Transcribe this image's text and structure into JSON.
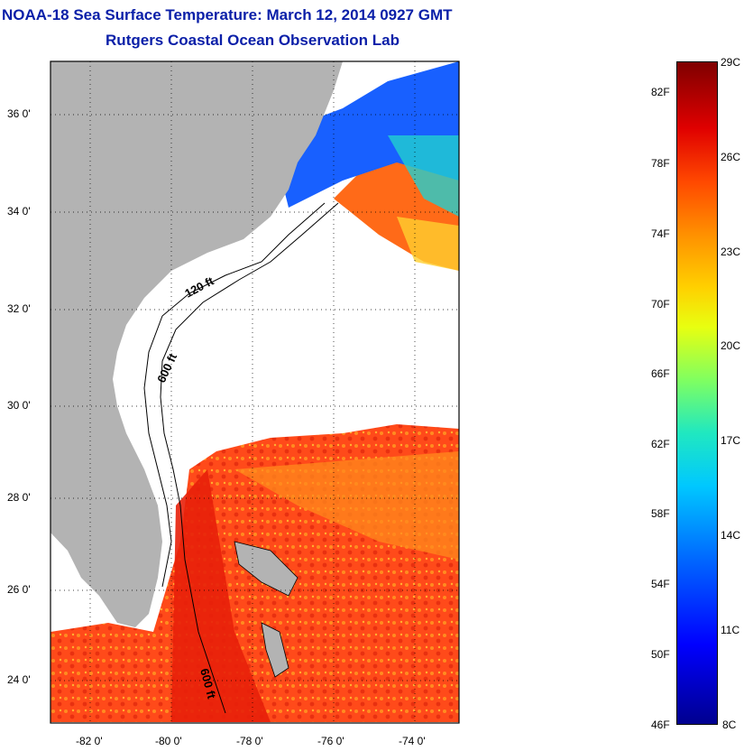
{
  "title": "NOAA-18 Sea Surface Temperature:  March 12, 2014 0927 GMT",
  "subtitle": "Rutgers Coastal Ocean Observation Lab",
  "map": {
    "lat_labels": [
      "36 0'",
      "34 0'",
      "32 0'",
      "30 0'",
      "28 0'",
      "26 0'",
      "24 0'"
    ],
    "lon_labels": [
      "-82 0'",
      "-80 0'",
      "-78 0'",
      "-76 0'",
      "-74 0'"
    ],
    "contour_labels": [
      "120 ft",
      "600 ft",
      "600 ft"
    ],
    "land_color": "#b3b3b3",
    "cloud_color": "#ffffff"
  },
  "colorbar": {
    "fahrenheit_labels": [
      "82F",
      "78F",
      "74F",
      "70F",
      "66F",
      "62F",
      "58F",
      "54F",
      "50F",
      "46F"
    ],
    "celsius_labels": [
      "29C",
      "26C",
      "23C",
      "20C",
      "17C",
      "14C",
      "11C",
      "8C"
    ],
    "min_color": "#00008f",
    "max_color": "#7f0000"
  }
}
